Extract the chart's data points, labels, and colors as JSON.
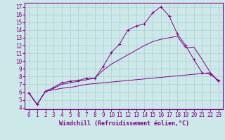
{
  "xlabel": "Windchill (Refroidissement éolien,°C)",
  "background_color": "#cce8e8",
  "grid_color": "#aad0d0",
  "line_color": "#880088",
  "x_ticks": [
    0,
    1,
    2,
    3,
    4,
    5,
    6,
    7,
    8,
    9,
    10,
    11,
    12,
    13,
    14,
    15,
    16,
    17,
    18,
    19,
    20,
    21,
    22,
    23
  ],
  "y_ticks": [
    4,
    5,
    6,
    7,
    8,
    9,
    10,
    11,
    12,
    13,
    14,
    15,
    16,
    17
  ],
  "ylim": [
    3.8,
    17.5
  ],
  "xlim": [
    -0.5,
    23.5
  ],
  "series": [
    {
      "x": [
        0,
        1,
        2,
        3,
        4,
        5,
        6,
        7,
        8,
        9,
        10,
        11,
        12,
        13,
        14,
        15,
        16,
        17,
        18,
        19,
        20,
        21,
        22,
        23
      ],
      "y": [
        5.9,
        4.4,
        6.1,
        6.6,
        7.2,
        7.4,
        7.5,
        7.8,
        7.8,
        9.3,
        11.1,
        12.2,
        14.0,
        14.5,
        14.8,
        16.2,
        17.0,
        15.8,
        13.5,
        12.0,
        10.2,
        8.5,
        8.3,
        7.5
      ],
      "marker": true
    },
    {
      "x": [
        0,
        1,
        2,
        3,
        4,
        5,
        6,
        7,
        8,
        9,
        10,
        11,
        12,
        13,
        14,
        15,
        16,
        17,
        18,
        19,
        20,
        21,
        22,
        23
      ],
      "y": [
        5.9,
        4.4,
        6.1,
        6.5,
        7.0,
        7.2,
        7.4,
        7.6,
        7.8,
        8.8,
        9.6,
        10.2,
        10.8,
        11.4,
        12.0,
        12.5,
        12.8,
        13.0,
        13.2,
        11.7,
        11.8,
        10.2,
        8.5,
        7.3
      ],
      "marker": false
    },
    {
      "x": [
        0,
        1,
        2,
        3,
        4,
        5,
        6,
        7,
        8,
        9,
        10,
        11,
        12,
        13,
        14,
        15,
        16,
        17,
        18,
        19,
        20,
        21,
        22,
        23
      ],
      "y": [
        5.9,
        4.4,
        6.1,
        6.3,
        6.5,
        6.6,
        6.8,
        7.0,
        7.1,
        7.2,
        7.3,
        7.4,
        7.5,
        7.6,
        7.7,
        7.8,
        7.9,
        8.0,
        8.1,
        8.2,
        8.3,
        8.4,
        8.5,
        7.4
      ],
      "marker": false
    }
  ],
  "tick_fontsize": 5.5,
  "xlabel_fontsize": 6.0
}
